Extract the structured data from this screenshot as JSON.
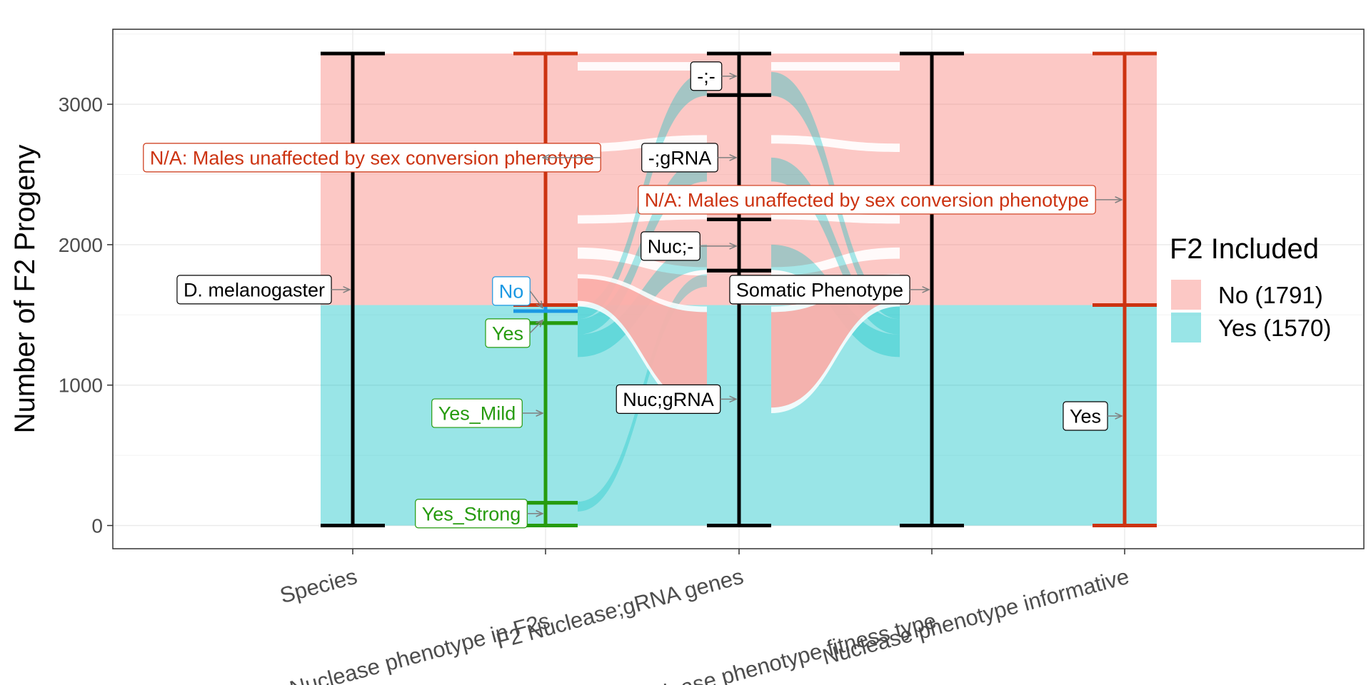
{
  "chart_data": {
    "type": "alluvial",
    "title": "",
    "xlabel": "",
    "ylabel": "Number of F2 Progeny",
    "ylim": [
      -170,
      3530
    ],
    "yticks": [
      0,
      1000,
      2000,
      3000
    ],
    "grid": true,
    "legend_position": "right",
    "axes": [
      "Species",
      "Nuclease phenotype in F2s",
      "F2 Nuclease;gRNA genes",
      "Nuclease phenotype fitness type",
      "Nuclease phenotype informative"
    ],
    "total": 3361,
    "series": [
      {
        "name": "No (1791)",
        "key": "No",
        "count": 1791,
        "color": "#f8766d"
      },
      {
        "name": "Yes (1570)",
        "key": "Yes",
        "count": 1570,
        "color": "#00bfc4"
      }
    ],
    "legend_title": "F2 Included",
    "strata": [
      [
        {
          "label": "D. melanogaster",
          "value": 3361,
          "color": "#000000"
        }
      ],
      [
        {
          "label": "Yes_Strong",
          "value": 162,
          "color": "#269b0f"
        },
        {
          "label": "Yes_Mild",
          "value": 1280,
          "color": "#269b0f"
        },
        {
          "label": "Yes",
          "value": 85,
          "color": "#269b0f"
        },
        {
          "label": "No",
          "value": 43,
          "color": "#1a98e3"
        },
        {
          "label": "N/A: Males unaffected by sex conversion phenotype",
          "value": 1791,
          "color": "#cc3311"
        }
      ],
      [
        {
          "label": "Nuc;gRNA",
          "value": 1815,
          "color": "#000000"
        },
        {
          "label": "Nuc;-",
          "value": 365,
          "color": "#000000"
        },
        {
          "label": "-;gRNA",
          "value": 885,
          "color": "#000000"
        },
        {
          "label": "-;-",
          "value": 296,
          "color": "#000000"
        }
      ],
      [
        {
          "label": "Somatic Phenotype",
          "value": 3361,
          "color": "#000000"
        }
      ],
      [
        {
          "label": "Yes",
          "value": 1570,
          "color": "#cc3311"
        },
        {
          "label": "N/A: Males unaffected by sex conversion phenotype",
          "value": 1791,
          "color": "#cc3311"
        }
      ]
    ]
  }
}
